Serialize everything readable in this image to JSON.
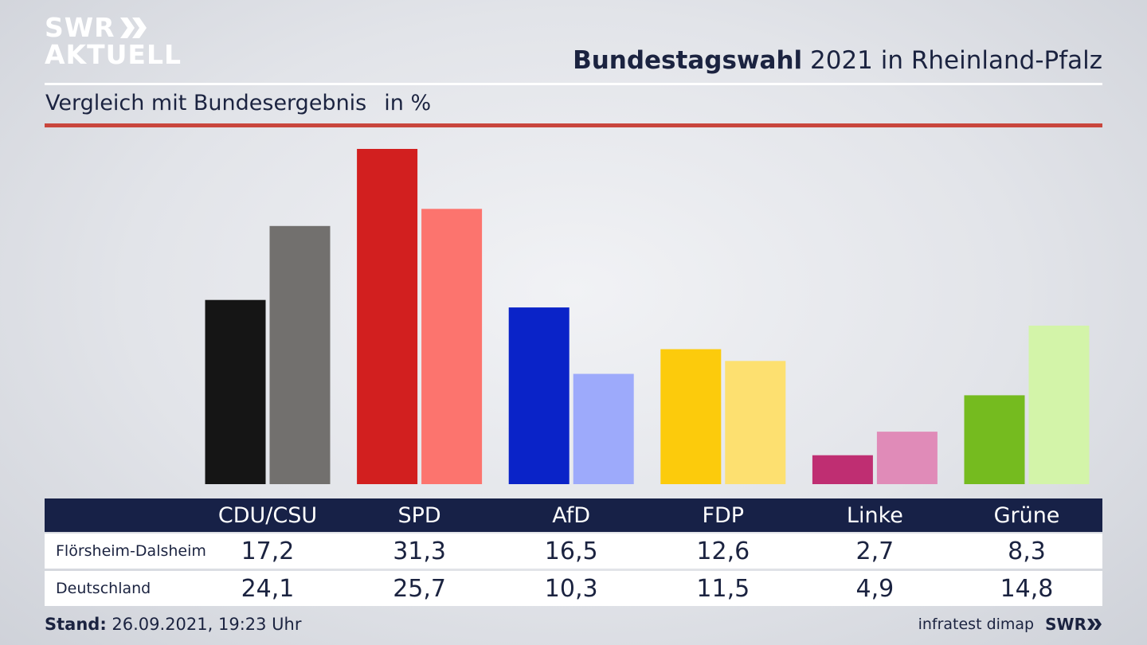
{
  "header": {
    "logo_line1": "SWR",
    "logo_line2": "AKTUELL",
    "title_bold": "Bundestagswahl",
    "title_rest": " 2021 in Rheinland-Pfalz",
    "subtitle": "Vergleich mit Bundesergebnis",
    "unit": "in %"
  },
  "table": {
    "row_labels": [
      "Flörsheim-Dalsheim",
      "Deutschland"
    ],
    "local_values": [
      "17,2",
      "31,3",
      "16,5",
      "12,6",
      "2,7",
      "8,3"
    ],
    "national_values": [
      "24,1",
      "25,7",
      "10,3",
      "11,5",
      "4,9",
      "14,8"
    ]
  },
  "footer": {
    "stand_label": "Stand:",
    "stand_value": " 26.09.2021, 19:23 Uhr",
    "source": "infratest dimap",
    "brand": "SWR"
  },
  "colors": {
    "header_bar": "#172147",
    "accent_rule": "#c9463d"
  },
  "chart_data": {
    "type": "bar",
    "categories": [
      "CDU/CSU",
      "SPD",
      "AfD",
      "FDP",
      "Linke",
      "Grüne"
    ],
    "series": [
      {
        "name": "Flörsheim-Dalsheim",
        "values": [
          17.2,
          31.3,
          16.5,
          12.6,
          2.7,
          8.3
        ],
        "colors": [
          "#151515",
          "#d21f1f",
          "#0a23c8",
          "#fccb0c",
          "#bf2e72",
          "#75bb1f"
        ]
      },
      {
        "name": "Deutschland",
        "values": [
          24.1,
          25.7,
          10.3,
          11.5,
          4.9,
          14.8
        ],
        "colors": [
          "#72706e",
          "#fc746e",
          "#9daafb",
          "#fde070",
          "#e08bb8",
          "#d3f4a9"
        ]
      }
    ],
    "ylim": [
      0,
      31.3
    ]
  }
}
